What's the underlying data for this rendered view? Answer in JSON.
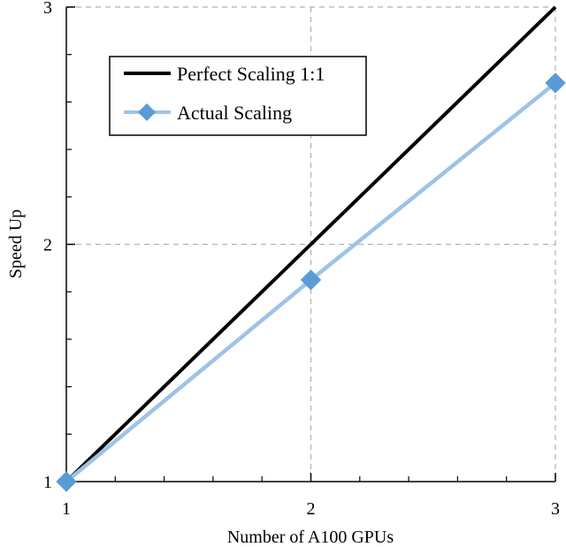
{
  "chart_data": {
    "type": "line",
    "title": "",
    "xlabel": "Number of A100 GPUs",
    "ylabel": "Speed Up",
    "x": [
      1,
      2,
      3
    ],
    "xlim": [
      1,
      3
    ],
    "ylim": [
      1,
      3
    ],
    "x_ticks": [
      1,
      2,
      3
    ],
    "y_ticks": [
      1,
      2,
      3
    ],
    "minor_ticks_per_major": 5,
    "grid": true,
    "grid_style": "dashed",
    "legend_position": "top-left",
    "series": [
      {
        "name": "Perfect Scaling 1:1",
        "values": [
          1,
          2,
          3
        ],
        "color": "#000000",
        "marker": "none"
      },
      {
        "name": "Actual Scaling",
        "values": [
          1,
          1.85,
          2.68
        ],
        "color": "#9DC3E6",
        "marker": "diamond",
        "marker_color": "#5B9BD5"
      }
    ]
  }
}
